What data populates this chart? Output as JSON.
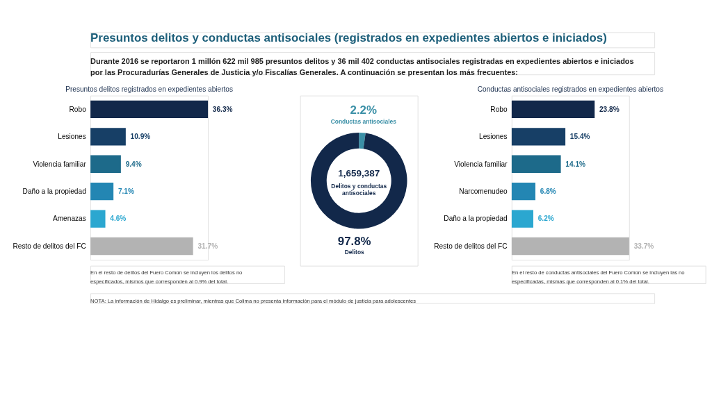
{
  "chart_data": [
    {
      "type": "other",
      "title": "Presuntos delitos y conductas antisociales (registrados en expedientes abiertos e iniciados)",
      "subtitle": "Durante 2016 se reportaron 1 millón 622 mil 985 presuntos delitos y 36 mil 402 conductas antisociales registradas en expedientes abiertos e iniciados por las Procuradurías Generales de Justicia y/o Fiscalías Generales. A continuación se presentan los más frecuentes:"
    },
    {
      "type": "bar",
      "orientation": "horizontal",
      "title": "Presuntos delitos registrados en expedientes abiertos",
      "categories": [
        "Robo",
        "Lesiones",
        "Violencia familiar",
        "Daño a la propiedad",
        "Amenazas",
        "Resto de delitos del FC"
      ],
      "values": [
        36.3,
        10.9,
        9.4,
        7.1,
        4.6,
        31.7
      ],
      "value_labels": [
        "36.3%",
        "10.9%",
        "9.4%",
        "7.1%",
        "4.6%",
        "31.7%"
      ],
      "colors": [
        "#12284a",
        "#173f66",
        "#1d6a8a",
        "#2386b3",
        "#2ba7d0",
        "#b3b3b3"
      ],
      "annotations": [
        "En el resto de delitos del Fuero Común se incluyen los delitos no especificados, mismos que corresponden al 0.9% del total."
      ]
    },
    {
      "type": "donut",
      "categories": [
        "Conductas antisociales",
        "Delitos"
      ],
      "values": [
        2.2,
        97.8
      ],
      "value_labels": [
        "2.2%",
        "97.8%"
      ],
      "colors": [
        "#3a8fa6",
        "#12284a"
      ],
      "annotations": [
        "1,659,387",
        "Delitos y conductas antisociales"
      ]
    },
    {
      "type": "bar",
      "orientation": "horizontal",
      "title": "Conductas antisociales registrados en expedientes abiertos",
      "categories": [
        "Robo",
        "Lesiones",
        "Violencia familiar",
        "Narcomenudeo",
        "Daño a la propiedad",
        "Resto de delitos del FC"
      ],
      "values": [
        23.8,
        15.4,
        14.1,
        6.8,
        6.2,
        33.7
      ],
      "value_labels": [
        "23.8%",
        "15.4%",
        "14.1%",
        "6.8%",
        "6.2%",
        "33.7%"
      ],
      "colors": [
        "#12284a",
        "#173f66",
        "#1d6a8a",
        "#2386b3",
        "#2ba7d0",
        "#b3b3b3"
      ],
      "annotations": [
        "En el resto de conductas antisociales del Fuero Común se incluyen las no especificadas, mismas que corresponden al 0.1% del total."
      ]
    },
    {
      "type": "other",
      "annotations": [
        "NOTA: La información de Hidalgo es preliminar, mientras que Colima no presenta información para el módulo de justicia para adolescentes"
      ]
    }
  ]
}
